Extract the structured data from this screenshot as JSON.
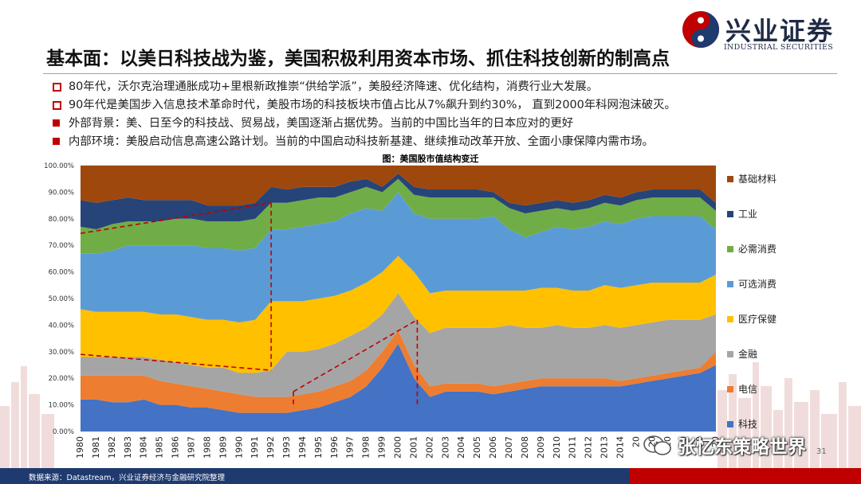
{
  "header": {
    "title": "基本面：以美日科技战为鉴，美国积极利用资本市场、抓住科技创新的制高点"
  },
  "logo": {
    "name": "兴业证券",
    "en": "INDUSTRIAL SECURITIES"
  },
  "bullets": [
    {
      "style": "outline",
      "text": "80年代，沃尔克治理通胀成功+里根新政推崇“供给学派”，美股经济降速、优化结构，消费行业大发展。"
    },
    {
      "style": "outline",
      "text": "90年代是美国步入信息技术革命时代，美股市场的科技板块市值占比从7%飙升到约30%， 直到2000年科网泡沫破灭。"
    },
    {
      "style": "filled",
      "text": "外部背景：美、日至今的科技战、贸易战，美国逐渐占据优势。当前的中国比当年的日本应对的更好"
    },
    {
      "style": "filled",
      "text": "内部环境：美股启动信息高速公路计划。当前的中国启动科技新基建、继续推动改革开放、全面小康保障内需市场。"
    }
  ],
  "chart_data": {
    "type": "area",
    "stacked": true,
    "title": "图：美国股市值结构变迁",
    "ylim": [
      0,
      100
    ],
    "y_ticks": [
      "0.00%",
      "10.00%",
      "20.00%",
      "30.00%",
      "40.00%",
      "50.00%",
      "60.00%",
      "70.00%",
      "80.00%",
      "90.00%",
      "100.00%"
    ],
    "x": [
      1980,
      1981,
      1982,
      1983,
      1984,
      1985,
      1986,
      1987,
      1988,
      1989,
      1990,
      1991,
      1992,
      1993,
      1994,
      1995,
      1996,
      1997,
      1998,
      1999,
      2000,
      2001,
      2002,
      2003,
      2004,
      2005,
      2006,
      2007,
      2008,
      2009,
      2010,
      2011,
      2012,
      2013,
      2014,
      2015,
      2016,
      2017,
      2018,
      2019,
      2020
    ],
    "x_labels": [
      "1980",
      "1981",
      "1982",
      "1983",
      "1984",
      "1985",
      "1986",
      "1987",
      "1988",
      "1989",
      "1990",
      "1991",
      "1992",
      "1993",
      "1994",
      "1995",
      "1996",
      "1997",
      "1998",
      "1999",
      "2000",
      "2001",
      "2002",
      "2003",
      "2004",
      "2005",
      "2006",
      "2007",
      "2008",
      "2009",
      "2010",
      "2011",
      "2012",
      "2013",
      "2014",
      "20",
      "20",
      "20",
      "20",
      "20",
      "20"
    ],
    "legend_position": "right",
    "series": [
      {
        "name": "科技",
        "color": "#4472c4",
        "values": [
          12,
          12,
          11,
          11,
          12,
          10,
          10,
          9,
          9,
          8,
          7,
          7,
          7,
          7,
          8,
          9,
          11,
          13,
          17,
          24,
          33,
          20,
          13,
          15,
          15,
          15,
          14,
          15,
          16,
          17,
          17,
          17,
          17,
          17,
          17,
          18,
          19,
          20,
          21,
          22,
          25
        ]
      },
      {
        "name": "电信",
        "color": "#ed7d31",
        "values": [
          9,
          9,
          10,
          10,
          9,
          9,
          8,
          8,
          7,
          7,
          7,
          6,
          6,
          6,
          6,
          6,
          6,
          6,
          6,
          6,
          5,
          5,
          4,
          3,
          3,
          3,
          3,
          3,
          3,
          3,
          3,
          3,
          3,
          3,
          2,
          2,
          2,
          2,
          2,
          2,
          5
        ]
      },
      {
        "name": "金融",
        "color": "#a5a5a5",
        "values": [
          7,
          7,
          7,
          7,
          7,
          8,
          8,
          8,
          8,
          9,
          8,
          9,
          10,
          17,
          16,
          16,
          16,
          17,
          16,
          14,
          14,
          18,
          20,
          21,
          21,
          21,
          22,
          22,
          20,
          19,
          20,
          19,
          19,
          20,
          20,
          20,
          20,
          20,
          19,
          18,
          14
        ]
      },
      {
        "name": "医疗保健",
        "color": "#ffc000",
        "values": [
          18,
          17,
          17,
          17,
          17,
          17,
          18,
          18,
          18,
          18,
          19,
          20,
          26,
          19,
          19,
          19,
          18,
          17,
          17,
          16,
          14,
          17,
          15,
          14,
          14,
          14,
          14,
          13,
          14,
          15,
          14,
          14,
          14,
          15,
          15,
          15,
          15,
          14,
          14,
          14,
          15
        ]
      },
      {
        "name": "可选消费",
        "color": "#5b9bd5",
        "values": [
          21,
          22,
          23,
          25,
          25,
          26,
          26,
          27,
          27,
          27,
          27,
          27,
          27,
          27,
          28,
          28,
          28,
          29,
          28,
          23,
          24,
          22,
          28,
          27,
          27,
          27,
          28,
          23,
          20,
          21,
          23,
          23,
          24,
          24,
          24,
          25,
          25,
          25,
          25,
          25,
          17
        ]
      },
      {
        "name": "必需消费",
        "color": "#70ad47",
        "values": [
          10,
          9,
          10,
          9,
          9,
          9,
          10,
          10,
          10,
          10,
          11,
          11,
          10,
          10,
          10,
          10,
          9,
          8,
          8,
          7,
          5,
          7,
          8,
          8,
          8,
          8,
          7,
          8,
          9,
          8,
          7,
          7,
          7,
          7,
          7,
          7,
          7,
          7,
          7,
          7,
          7
        ]
      },
      {
        "name": "工业",
        "color": "#264478",
        "values": [
          10,
          10,
          9,
          9,
          8,
          8,
          7,
          7,
          6,
          6,
          6,
          6,
          6,
          5,
          5,
          4,
          4,
          4,
          3,
          2,
          2,
          3,
          3,
          3,
          3,
          3,
          2,
          2,
          3,
          3,
          3,
          3,
          3,
          3,
          3,
          3,
          3,
          3,
          3,
          3,
          3
        ]
      },
      {
        "name": "基础材料",
        "color": "#9e480e",
        "values": [
          13,
          14,
          13,
          12,
          13,
          13,
          13,
          13,
          15,
          15,
          15,
          14,
          8,
          9,
          8,
          8,
          8,
          6,
          5,
          8,
          3,
          8,
          9,
          9,
          9,
          9,
          10,
          14,
          15,
          14,
          13,
          14,
          13,
          11,
          12,
          10,
          9,
          9,
          9,
          9,
          14
        ]
      }
    ]
  },
  "footer": {
    "source": "数据来源：Datastream，兴业证券经济与金融研究院整理"
  },
  "watermark": {
    "text": "张忆东策略世界"
  },
  "page": {
    "number": "31"
  }
}
